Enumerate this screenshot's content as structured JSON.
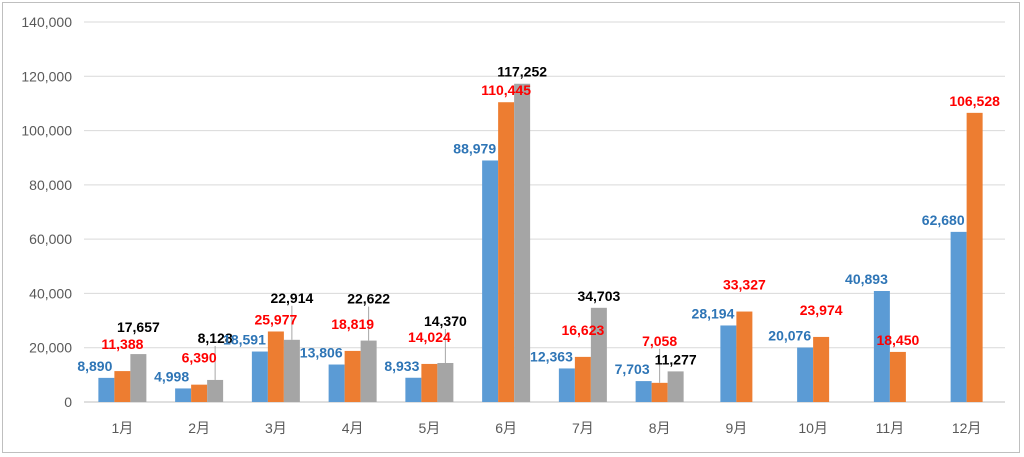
{
  "chart_data": {
    "type": "bar",
    "categories": [
      "1月",
      "2月",
      "3月",
      "4月",
      "5月",
      "6月",
      "7月",
      "8月",
      "9月",
      "10月",
      "11月",
      "12月"
    ],
    "series": [
      {
        "color": "#5b9bd5",
        "label_color": "#2e75b6",
        "values": [
          8890,
          4998,
          18591,
          13806,
          8933,
          88979,
          12363,
          7703,
          28194,
          20076,
          40893,
          62680
        ],
        "labels": [
          "8,890",
          "4,998",
          "18,591",
          "13,806",
          "8,933",
          "88,979",
          "12,363",
          "7,703",
          "28,194",
          "20,076",
          "40,893",
          "62,680"
        ]
      },
      {
        "color": "#ed7d31",
        "label_color": "#ff0000",
        "values": [
          11388,
          6390,
          25977,
          18819,
          14024,
          110445,
          16623,
          7058,
          33327,
          23974,
          18450,
          106528
        ],
        "labels": [
          "11,388",
          "6,390",
          "25,977",
          "18,819",
          "14,024",
          "110,445",
          "16,623",
          "7,058",
          "33,327",
          "23,974",
          "18,450",
          "106,528"
        ]
      },
      {
        "color": "#a5a5a5",
        "label_color": "#000000",
        "values": [
          17657,
          8128,
          22914,
          22622,
          14370,
          117252,
          34703,
          11277,
          null,
          null,
          null,
          null
        ],
        "labels": [
          "17,657",
          "8,128",
          "22,914",
          "22,622",
          "14,370",
          "117,252",
          "34,703",
          "11,277",
          null,
          null,
          null,
          null
        ]
      }
    ],
    "ylim": [
      0,
      140000
    ],
    "yticks": [
      0,
      20000,
      40000,
      60000,
      80000,
      100000,
      120000,
      140000
    ],
    "ytick_labels": [
      "0",
      "20,000",
      "40,000",
      "60,000",
      "80,000",
      "100,000",
      "120,000",
      "140,000"
    ],
    "grid": true,
    "legend": "none",
    "title": "",
    "xlabel": "",
    "ylabel": ""
  }
}
